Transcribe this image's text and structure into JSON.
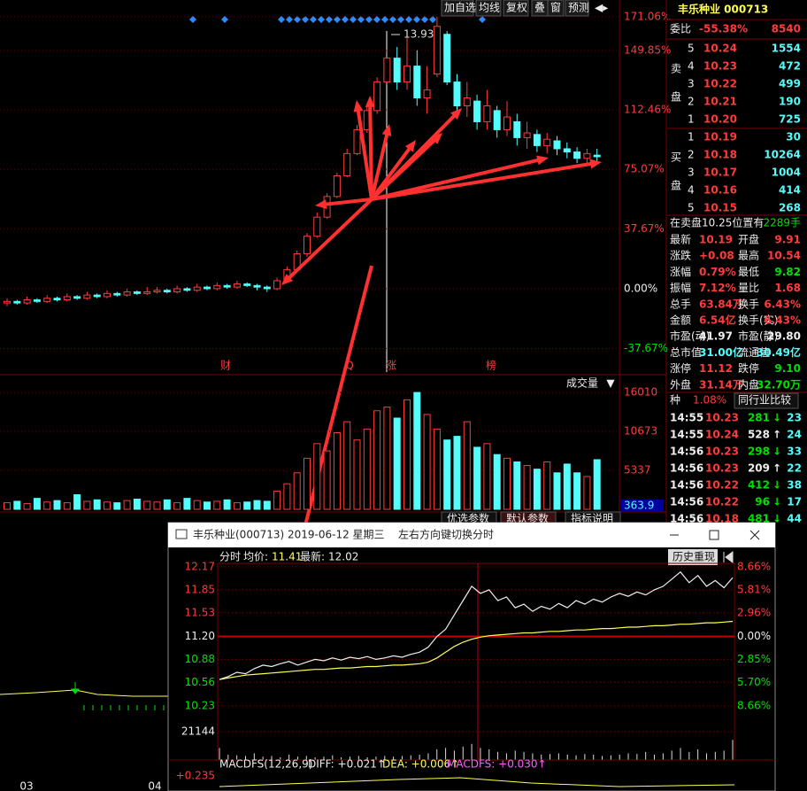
{
  "toolbar": [
    "加自选",
    "均线",
    "复权",
    "叠",
    "窗",
    "预测"
  ],
  "main_chart": {
    "type": "candlestick",
    "ylim": [
      -52.4,
      176
    ],
    "yticks": [
      {
        "value": 171.06,
        "label": "171.06%"
      },
      {
        "value": 149.85,
        "label": "149.85%"
      },
      {
        "value": 112.46,
        "label": "112.46%"
      },
      {
        "value": 75.07,
        "label": "75.07%"
      },
      {
        "value": 37.67,
        "label": "37.67%"
      },
      {
        "value": 0,
        "label": "0.00%"
      },
      {
        "value": -37.67,
        "label": "-37.67%"
      }
    ],
    "peak_label": "13.93",
    "events": [
      "财",
      "Q",
      "涨",
      "榜"
    ],
    "candles": [
      [
        -9,
        -8,
        -6,
        -11
      ],
      [
        -8,
        -9,
        -7,
        -10
      ],
      [
        -9,
        -7,
        -5,
        -10
      ],
      [
        -7,
        -8,
        -6,
        -9
      ],
      [
        -8,
        -6,
        -4,
        -9
      ],
      [
        -6,
        -7,
        -5,
        -8
      ],
      [
        -7,
        -5,
        -3,
        -8
      ],
      [
        -5,
        -6,
        -4,
        -7
      ],
      [
        -6,
        -4,
        -2,
        -7
      ],
      [
        -4,
        -5,
        -3,
        -6
      ],
      [
        -5,
        -3,
        -1,
        -6
      ],
      [
        -3,
        -4,
        -2,
        -5
      ],
      [
        -4,
        -2,
        0,
        -5
      ],
      [
        -2,
        -3,
        -1,
        -4
      ],
      [
        -3,
        -2,
        1,
        -4
      ],
      [
        -2,
        -1,
        1,
        -3
      ],
      [
        -1,
        -2,
        0,
        -3
      ],
      [
        -2,
        0,
        2,
        -3
      ],
      [
        0,
        -1,
        1,
        -2
      ],
      [
        -1,
        1,
        3,
        -2
      ],
      [
        1,
        0,
        2,
        -1
      ],
      [
        0,
        2,
        4,
        -1
      ],
      [
        2,
        1,
        3,
        0
      ],
      [
        1,
        3,
        5,
        0
      ],
      [
        3,
        2,
        4,
        1
      ],
      [
        2,
        1,
        3,
        -1
      ],
      [
        1,
        0,
        2,
        -2
      ],
      [
        0,
        5,
        7,
        -1
      ],
      [
        5,
        12,
        14,
        4
      ],
      [
        12,
        22,
        24,
        11
      ],
      [
        22,
        33,
        35,
        20
      ],
      [
        33,
        45,
        48,
        32
      ],
      [
        45,
        58,
        60,
        44
      ],
      [
        58,
        71,
        73,
        57
      ],
      [
        71,
        85,
        88,
        70
      ],
      [
        85,
        100,
        103,
        84
      ],
      [
        100,
        112,
        115,
        98
      ],
      [
        112,
        130,
        133,
        110
      ],
      [
        130,
        145,
        150,
        128
      ],
      [
        145,
        130,
        152,
        125
      ],
      [
        130,
        140,
        158,
        125
      ],
      [
        140,
        120,
        150,
        115
      ],
      [
        120,
        125,
        140,
        110
      ],
      [
        135,
        165,
        171,
        133
      ],
      [
        160,
        130,
        162,
        128
      ],
      [
        130,
        115,
        135,
        110
      ],
      [
        115,
        120,
        130,
        108
      ],
      [
        118,
        105,
        122,
        100
      ],
      [
        105,
        115,
        125,
        100
      ],
      [
        112,
        100,
        115,
        95
      ],
      [
        100,
        108,
        118,
        96
      ],
      [
        105,
        95,
        110,
        90
      ],
      [
        95,
        98,
        105,
        88
      ],
      [
        97,
        90,
        100,
        86
      ],
      [
        90,
        94,
        98,
        85
      ],
      [
        93,
        88,
        96,
        84
      ],
      [
        88,
        86,
        92,
        82
      ],
      [
        86,
        82,
        89,
        79
      ],
      [
        82,
        85,
        88,
        78
      ],
      [
        84,
        83,
        88,
        80
      ]
    ]
  },
  "volume": {
    "type": "bar",
    "title": "成交量",
    "ylim": [
      0,
      17840
    ],
    "yticks": [
      16010,
      10673,
      5337
    ],
    "current_label": "363.9",
    "values": [
      900,
      1100,
      800,
      1500,
      1000,
      1200,
      900,
      2000,
      1100,
      1300,
      1000,
      900,
      1200,
      1400,
      1100,
      1000,
      1300,
      900,
      1500,
      1200,
      1000,
      1100,
      1300,
      900,
      1000,
      1200,
      1100,
      2500,
      3500,
      5000,
      7000,
      9000,
      8000,
      10500,
      12000,
      9500,
      11000,
      13500,
      14000,
      12500,
      15000,
      16010,
      13000,
      11000,
      9500,
      10000,
      12000,
      8500,
      9000,
      7500,
      7000,
      6500,
      6000,
      5500,
      6500,
      5000,
      6200,
      5000,
      4500,
      6800
    ]
  },
  "tabs": [
    "优选参数",
    "默认参数",
    "指标说明"
  ],
  "bottom_left": {
    "labels": [
      "03",
      "04"
    ]
  },
  "quote": {
    "title": "丰乐种业 000713",
    "ratio_label": "委比",
    "ratio": "-55.38%",
    "ratio_diff": "8540",
    "sell_label": [
      "卖",
      "盘"
    ],
    "buy_label": [
      "买",
      "盘"
    ],
    "sell": [
      [
        "5",
        "10.24",
        "1554"
      ],
      [
        "4",
        "10.23",
        "472"
      ],
      [
        "3",
        "10.22",
        "499"
      ],
      [
        "2",
        "10.21",
        "190"
      ],
      [
        "1",
        "10.20",
        "725"
      ]
    ],
    "buy": [
      [
        "1",
        "10.19",
        "30"
      ],
      [
        "2",
        "10.18",
        "10264"
      ],
      [
        "3",
        "10.17",
        "1004"
      ],
      [
        "4",
        "10.16",
        "414"
      ],
      [
        "5",
        "10.15",
        "268"
      ]
    ],
    "note": "在卖盘10.25位置有",
    "note_value": "2289手",
    "stats": [
      [
        "最新",
        "10.19",
        "开盘",
        "9.91"
      ],
      [
        "涨跌",
        "+0.08",
        "最高",
        "10.54"
      ],
      [
        "涨幅",
        "0.79%",
        "最低",
        "9.82"
      ],
      [
        "振幅",
        "7.12%",
        "量比",
        "1.68"
      ],
      [
        "总手",
        "63.84万",
        "换手",
        "6.43%"
      ],
      [
        "金额",
        "6.54亿",
        "换手(实)",
        "6.43%"
      ],
      [
        "市盈(动)",
        "41.97",
        "市盈(静)",
        "29.80"
      ],
      [
        "总市值",
        "31.00亿",
        "流通值",
        "30.49亿"
      ],
      [
        "涨停",
        "11.12",
        "跌停",
        "9.10"
      ],
      [
        "外盘",
        "31.14万",
        "内盘",
        "32.70万"
      ]
    ],
    "sector": "种",
    "sector_value": "1.08%",
    "compare": "同行业比较",
    "ticks": [
      [
        "14:55",
        "10.23",
        "281",
        "↓",
        "23"
      ],
      [
        "14:55",
        "10.24",
        "528",
        "↑",
        "24"
      ],
      [
        "14:56",
        "10.23",
        "298",
        "↓",
        "33"
      ],
      [
        "14:56",
        "10.23",
        "209",
        "↑",
        "22"
      ],
      [
        "14:56",
        "10.22",
        "412",
        "↓",
        "38"
      ],
      [
        "14:56",
        "10.22",
        "96",
        "↓",
        "17"
      ],
      [
        "14:56",
        "10.18",
        "481",
        "↓",
        "44"
      ]
    ]
  },
  "popup": {
    "title": "丰乐种业(000713) 2019-06-12 星期三",
    "hint": "左右方向键切换分时",
    "mode": "分时",
    "avg_label": "均价:",
    "avg": "11.41",
    "last_label": "最新:",
    "last": "12.02",
    "replay": "历史重现",
    "ylim": [
      10.23,
      12.17
    ],
    "yticks": [
      12.17,
      11.85,
      11.53,
      11.2,
      10.88,
      10.56,
      10.23
    ],
    "ytick_labels": [
      "12.17",
      "11.85",
      "11.53",
      "11.20",
      "10.88",
      "10.56",
      "10.23"
    ],
    "right_labels": [
      "8.66%",
      "5.81%",
      "2.96%",
      "0.00%",
      "2.85%",
      "5.70%",
      "8.66%"
    ],
    "price": [
      10.6,
      10.64,
      10.7,
      10.68,
      10.75,
      10.8,
      10.78,
      10.82,
      10.85,
      10.8,
      10.84,
      10.88,
      10.86,
      10.9,
      10.87,
      10.91,
      10.89,
      10.92,
      10.88,
      10.9,
      10.93,
      10.91,
      10.95,
      10.98,
      11.05,
      11.2,
      11.3,
      11.5,
      11.7,
      11.9,
      11.8,
      11.85,
      11.7,
      11.75,
      11.6,
      11.65,
      11.55,
      11.62,
      11.58,
      11.66,
      11.6,
      11.7,
      11.65,
      11.72,
      11.68,
      11.75,
      11.8,
      11.76,
      11.82,
      11.78,
      11.85,
      11.9,
      12.0,
      12.1,
      11.95,
      12.05,
      11.9,
      11.98,
      11.88,
      12.02
    ],
    "average": [
      10.6,
      10.62,
      10.64,
      10.66,
      10.67,
      10.68,
      10.69,
      10.7,
      10.71,
      10.72,
      10.73,
      10.74,
      10.74,
      10.75,
      10.76,
      10.76,
      10.77,
      10.78,
      10.78,
      10.79,
      10.8,
      10.8,
      10.81,
      10.82,
      10.84,
      10.9,
      10.98,
      11.06,
      11.12,
      11.16,
      11.19,
      11.21,
      11.22,
      11.23,
      11.24,
      11.25,
      11.25,
      11.26,
      11.27,
      11.27,
      11.28,
      11.29,
      11.29,
      11.3,
      11.31,
      11.31,
      11.32,
      11.33,
      11.33,
      11.34,
      11.35,
      11.35,
      11.36,
      11.37,
      11.37,
      11.38,
      11.39,
      11.39,
      11.4,
      11.41
    ],
    "vol_ylim": [
      0,
      21144
    ],
    "vol_yticks": [
      21144
    ],
    "volume": [
      9000,
      4000,
      3500,
      3000,
      5000,
      2500,
      3000,
      2000,
      4000,
      2500,
      3000,
      2000,
      2500,
      3500,
      2000,
      2500,
      3000,
      2000,
      2500,
      3000,
      2500,
      3000,
      3500,
      4000,
      5000,
      8000,
      9000,
      7000,
      10000,
      12000,
      9000,
      8000,
      6000,
      5000,
      7000,
      6000,
      5000,
      4000,
      4500,
      5000,
      4000,
      3500,
      4500,
      4000,
      3000,
      3500,
      4000,
      5000,
      4500,
      6000,
      4000,
      5000,
      7000,
      9000,
      6000,
      8000,
      5000,
      6000,
      7000,
      15000
    ],
    "macd": [
      "MACDFS(12,26,9)",
      "DIFF: +0.021↑",
      "DEA: +0.006↑",
      "MACDFS: +0.030↑"
    ],
    "macd_value": "+0.235"
  }
}
